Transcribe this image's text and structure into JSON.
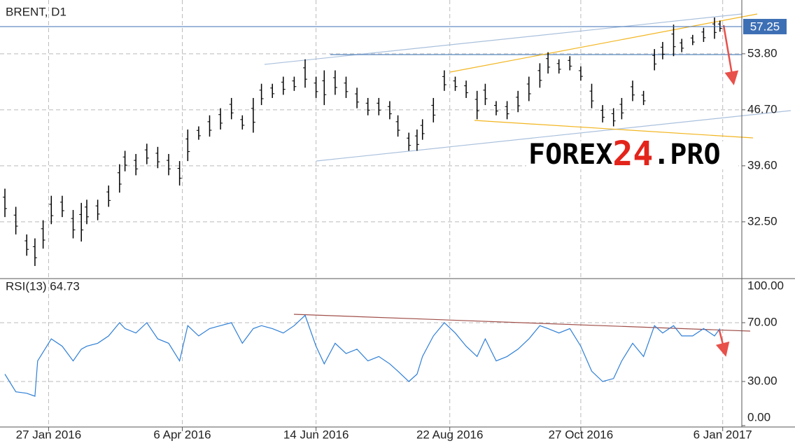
{
  "chart_data": [
    {
      "type": "ohlc",
      "title": "BRENT, D1",
      "watermark": [
        "FOREX",
        "24",
        ".PRO"
      ],
      "color": "#000000",
      "x": [
        0,
        4,
        8,
        11,
        14,
        17,
        21,
        25,
        28,
        30,
        34,
        38,
        42,
        44,
        48,
        52,
        56,
        60,
        64,
        67,
        71,
        75,
        79,
        83,
        87,
        91,
        94,
        98,
        102,
        106,
        110,
        114,
        117,
        121,
        125,
        129,
        133,
        137,
        141,
        144,
        148,
        151,
        153,
        157,
        161,
        165,
        169,
        173,
        176,
        180,
        184,
        188,
        192,
        196,
        199,
        203,
        207,
        211,
        215,
        219,
        223,
        226,
        230,
        234,
        238,
        241,
        245,
        248,
        252,
        256,
        260,
        262
      ],
      "high": [
        36.7,
        34.4,
        30.9,
        30.4,
        32.7,
        35.8,
        35.8,
        34.0,
        34.9,
        35.3,
        35.3,
        37.1,
        39.8,
        41.5,
        41.1,
        42.4,
        42.0,
        41.1,
        40.2,
        44.2,
        44.6,
        46.0,
        46.9,
        48.2,
        46.0,
        48.2,
        50.0,
        50.0,
        50.9,
        50.9,
        53.1,
        50.9,
        51.7,
        51.7,
        50.9,
        49.5,
        48.2,
        48.2,
        47.8,
        46.0,
        43.8,
        44.2,
        45.5,
        48.2,
        51.7,
        50.9,
        50.4,
        49.1,
        50.0,
        47.8,
        47.8,
        49.1,
        50.9,
        52.6,
        54.0,
        53.1,
        53.5,
        52.2,
        50.0,
        47.3,
        46.9,
        48.2,
        50.4,
        49.1,
        54.4,
        55.3,
        57.5,
        55.7,
        56.2,
        57.1,
        58.4,
        58.0
      ],
      "low": [
        33.1,
        30.9,
        28.2,
        26.9,
        29.1,
        32.2,
        33.1,
        30.4,
        30.0,
        32.2,
        32.7,
        34.4,
        36.2,
        38.9,
        38.4,
        39.8,
        39.3,
        38.4,
        37.1,
        40.2,
        42.9,
        43.3,
        44.2,
        45.5,
        44.2,
        43.8,
        47.3,
        48.2,
        48.6,
        49.1,
        49.5,
        48.2,
        47.3,
        48.6,
        48.2,
        46.9,
        46.0,
        46.0,
        45.5,
        43.3,
        41.5,
        41.5,
        42.9,
        45.1,
        49.1,
        49.1,
        48.2,
        45.5,
        47.3,
        46.0,
        45.5,
        46.4,
        47.8,
        49.5,
        51.3,
        51.3,
        51.7,
        50.4,
        46.9,
        45.1,
        44.6,
        45.5,
        47.8,
        47.3,
        51.7,
        53.1,
        53.5,
        54.0,
        54.9,
        55.3,
        55.7,
        56.6
      ],
      "xlim": [
        -1.8,
        270
      ],
      "ylim": [
        25.3,
        60.62
      ],
      "yticks": [
        {
          "value": 32.5,
          "label": "32.50"
        },
        {
          "value": 39.6,
          "label": "39.60"
        },
        {
          "value": 46.7,
          "label": "46.70"
        },
        {
          "value": 53.8,
          "label": "53.80"
        }
      ],
      "price_line": {
        "value": 57.25,
        "label": "57.25",
        "color": "#3d6fb5"
      },
      "grid": true
    },
    {
      "type": "line",
      "title": "RSI(13) 64.73",
      "color": "#2f7fd6",
      "x": [
        0,
        4,
        8,
        11,
        12,
        17,
        21,
        25,
        28,
        30,
        34,
        38,
        42,
        44,
        48,
        52,
        56,
        60,
        64,
        67,
        71,
        75,
        79,
        83,
        87,
        91,
        94,
        98,
        102,
        106,
        110,
        114,
        117,
        121,
        125,
        129,
        133,
        137,
        141,
        144,
        148,
        151,
        153,
        157,
        161,
        165,
        169,
        173,
        176,
        180,
        184,
        188,
        192,
        196,
        199,
        203,
        207,
        211,
        215,
        219,
        223,
        226,
        230,
        234,
        238,
        241,
        245,
        248,
        252,
        256,
        260,
        262
      ],
      "values": [
        35,
        23,
        22,
        20,
        44,
        59,
        54,
        44,
        52,
        54,
        56,
        61,
        70,
        66,
        63,
        70,
        59,
        56,
        44,
        68,
        61,
        66,
        68,
        70,
        56,
        66,
        68,
        66,
        63,
        68,
        75,
        54,
        42,
        56,
        49,
        52,
        44,
        47,
        42,
        37,
        30,
        35,
        47,
        61,
        70,
        63,
        54,
        47,
        59,
        44,
        47,
        52,
        59,
        68,
        66,
        63,
        66,
        54,
        37,
        30,
        32,
        44,
        56,
        47,
        68,
        63,
        68,
        61,
        61,
        66,
        61,
        66
      ],
      "xlim": [
        -1.8,
        270
      ],
      "ylim": [
        0,
        100
      ],
      "yticks": [
        {
          "value": 0,
          "label": "0.00"
        },
        {
          "value": 30,
          "label": "30.00"
        },
        {
          "value": 70,
          "label": "70.00"
        },
        {
          "value": 100,
          "label": "100.00"
        }
      ],
      "xticks": [
        {
          "value": 16,
          "label": "27 Jan 2016"
        },
        {
          "value": 65,
          "label": "6 Apr 2016"
        },
        {
          "value": 114,
          "label": "14 Jun 2016"
        },
        {
          "value": 163,
          "label": "22 Aug 2016"
        },
        {
          "value": 211,
          "label": "27 Oct 2016"
        },
        {
          "value": 263,
          "label": "6 Jan 2017"
        }
      ],
      "grid": true
    }
  ]
}
